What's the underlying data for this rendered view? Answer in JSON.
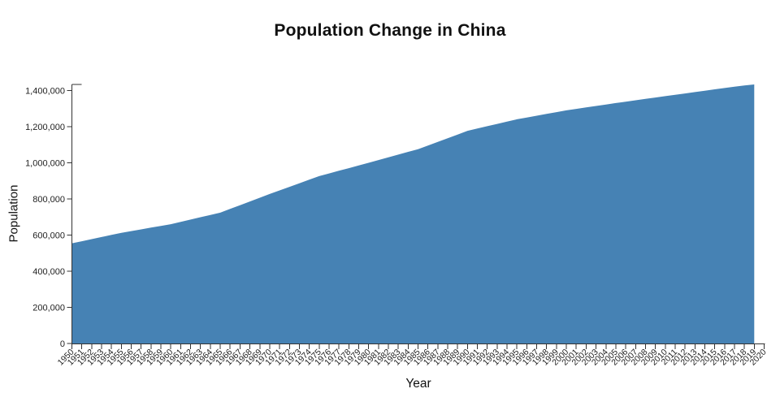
{
  "colors": {
    "area_fill": "#4682b4",
    "axis_line": "#333333",
    "tick_text": "#222222",
    "title_text": "#111111"
  },
  "chart_data": {
    "type": "area",
    "title": "Population Change in China",
    "xlabel": "Year",
    "ylabel": "Population",
    "grid": false,
    "legend": false,
    "xlim": [
      1950,
      2020
    ],
    "x_axis": {
      "tick_start": 1950,
      "tick_end": 2020,
      "tick_step": 1
    },
    "y_ticks": [
      0,
      200000,
      400000,
      600000,
      800000,
      1000000,
      1200000,
      1400000
    ],
    "y_tick_top_value": 1400000,
    "ylim": [
      0,
      1433784
    ],
    "x": [
      1950,
      1951,
      1952,
      1953,
      1954,
      1955,
      1956,
      1957,
      1958,
      1959,
      1960,
      1961,
      1962,
      1963,
      1964,
      1965,
      1966,
      1967,
      1968,
      1969,
      1970,
      1971,
      1972,
      1973,
      1974,
      1975,
      1976,
      1977,
      1978,
      1979,
      1980,
      1981,
      1982,
      1983,
      1984,
      1985,
      1986,
      1987,
      1988,
      1989,
      1990,
      1991,
      1992,
      1993,
      1994,
      1995,
      1996,
      1997,
      1998,
      1999,
      2000,
      2001,
      2002,
      2003,
      2004,
      2005,
      2006,
      2007,
      2008,
      2009,
      2010,
      2011,
      2012,
      2013,
      2014,
      2015,
      2016,
      2017,
      2018,
      2019
    ],
    "values": [
      554419,
      565984,
      577548,
      589113,
      600677,
      612242,
      621875,
      631508,
      641141,
      650775,
      660408,
      673170,
      685932,
      698695,
      711457,
      724219,
      744895,
      765572,
      786248,
      806925,
      827601,
      847329,
      867057,
      886785,
      906513,
      926241,
      941011,
      955780,
      970550,
      985319,
      1000089,
      1015189,
      1030289,
      1045389,
      1060489,
      1075589,
      1095848,
      1116107,
      1136366,
      1156625,
      1176884,
      1189691,
      1202499,
      1215306,
      1228113,
      1240921,
      1250847,
      1260773,
      1270699,
      1280625,
      1290551,
      1298596,
      1306641,
      1314686,
      1322731,
      1330776,
      1338383,
      1345990,
      1353597,
      1361204,
      1368811,
      1376418,
      1384026,
      1391633,
      1399241,
      1406848,
      1414049,
      1421022,
      1427648,
      1433784
    ]
  }
}
